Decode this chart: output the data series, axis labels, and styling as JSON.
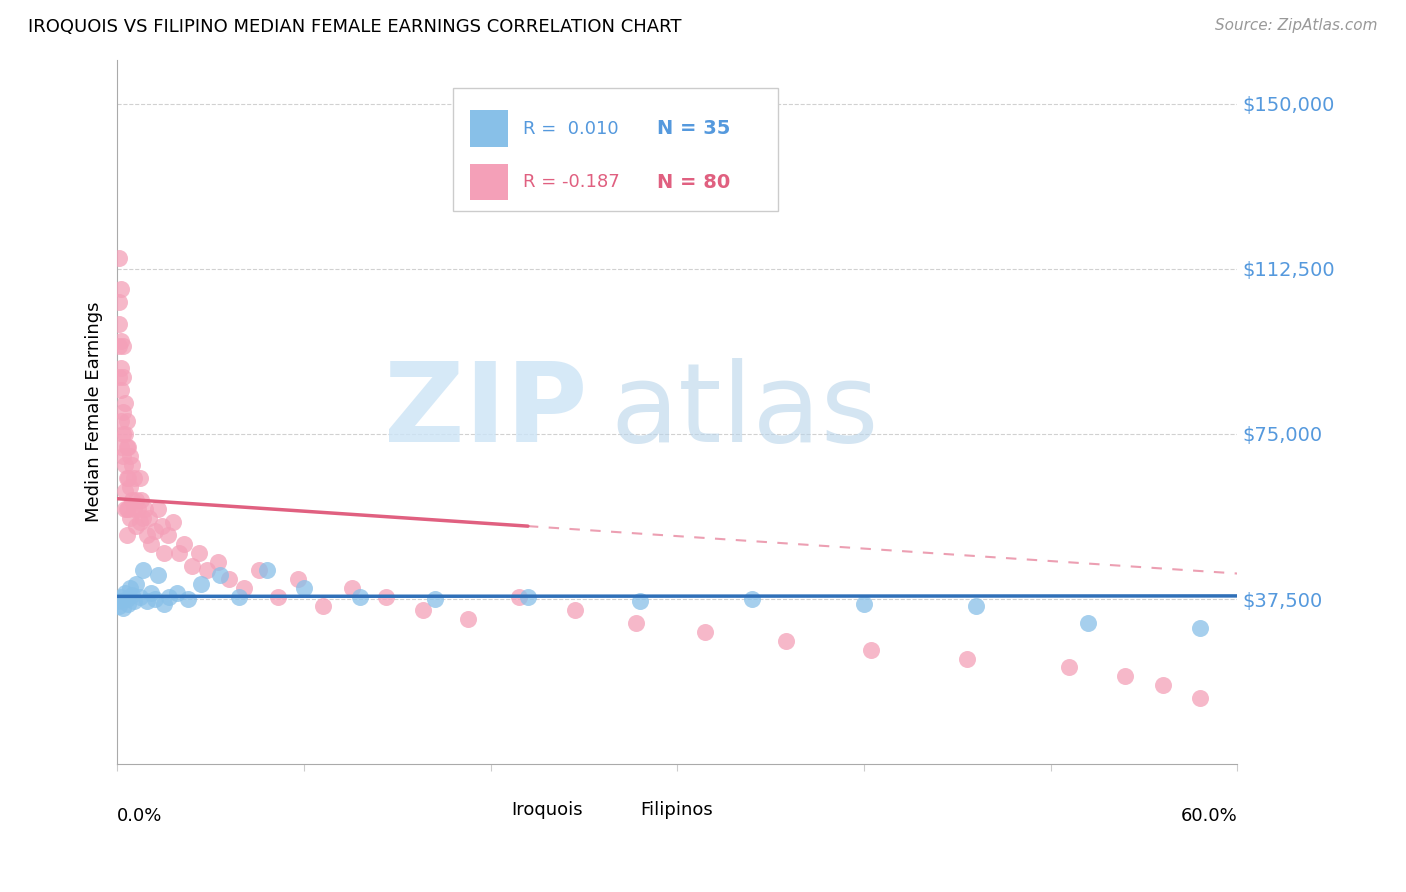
{
  "title": "IROQUOIS VS FILIPINO MEDIAN FEMALE EARNINGS CORRELATION CHART",
  "source": "Source: ZipAtlas.com",
  "ylabel": "Median Female Earnings",
  "ytick_labels": [
    "$37,500",
    "$75,000",
    "$112,500",
    "$150,000"
  ],
  "ytick_values": [
    37500,
    75000,
    112500,
    150000
  ],
  "ymin": 0,
  "ymax": 160000,
  "xmin": 0.0,
  "xmax": 0.6,
  "legend_iroquois_R": "R =  0.010",
  "legend_iroquois_N": "N = 35",
  "legend_filipino_R": "R = -0.187",
  "legend_filipino_N": "N = 80",
  "iroquois_color": "#88c0e8",
  "filipino_color": "#f4a0b8",
  "trendline_iroquois_color": "#3070b8",
  "trendline_filipino_color": "#e06080",
  "ytick_color": "#5599dd",
  "background_color": "#ffffff",
  "iroquois_x": [
    0.001,
    0.001,
    0.002,
    0.003,
    0.004,
    0.005,
    0.006,
    0.007,
    0.008,
    0.009,
    0.01,
    0.012,
    0.014,
    0.016,
    0.018,
    0.02,
    0.022,
    0.025,
    0.028,
    0.032,
    0.038,
    0.045,
    0.055,
    0.065,
    0.08,
    0.1,
    0.13,
    0.17,
    0.22,
    0.28,
    0.34,
    0.4,
    0.46,
    0.52,
    0.58
  ],
  "iroquois_y": [
    37000,
    36000,
    38000,
    35500,
    39000,
    37500,
    36500,
    40000,
    38500,
    37000,
    41000,
    38000,
    44000,
    37000,
    39000,
    37500,
    43000,
    36500,
    38000,
    39000,
    37500,
    41000,
    43000,
    38000,
    44000,
    40000,
    38000,
    37500,
    38000,
    37000,
    37500,
    36500,
    36000,
    32000,
    31000
  ],
  "filipino_x": [
    0.001,
    0.001,
    0.001,
    0.001,
    0.001,
    0.002,
    0.002,
    0.002,
    0.002,
    0.002,
    0.002,
    0.003,
    0.003,
    0.003,
    0.003,
    0.003,
    0.004,
    0.004,
    0.004,
    0.004,
    0.004,
    0.005,
    0.005,
    0.005,
    0.005,
    0.005,
    0.006,
    0.006,
    0.006,
    0.007,
    0.007,
    0.007,
    0.008,
    0.008,
    0.009,
    0.009,
    0.01,
    0.01,
    0.011,
    0.012,
    0.012,
    0.013,
    0.014,
    0.015,
    0.016,
    0.017,
    0.018,
    0.02,
    0.022,
    0.024,
    0.025,
    0.027,
    0.03,
    0.033,
    0.036,
    0.04,
    0.044,
    0.048,
    0.054,
    0.06,
    0.068,
    0.076,
    0.086,
    0.097,
    0.11,
    0.126,
    0.144,
    0.164,
    0.188,
    0.215,
    0.245,
    0.278,
    0.315,
    0.358,
    0.404,
    0.455,
    0.51,
    0.54,
    0.56,
    0.58
  ],
  "filipino_y": [
    115000,
    105000,
    100000,
    95000,
    88000,
    108000,
    96000,
    90000,
    85000,
    78000,
    72000,
    95000,
    88000,
    80000,
    75000,
    70000,
    82000,
    75000,
    68000,
    62000,
    58000,
    78000,
    72000,
    65000,
    58000,
    52000,
    72000,
    65000,
    58000,
    70000,
    63000,
    56000,
    68000,
    60000,
    65000,
    58000,
    60000,
    54000,
    58000,
    65000,
    55000,
    60000,
    56000,
    58000,
    52000,
    56000,
    50000,
    53000,
    58000,
    54000,
    48000,
    52000,
    55000,
    48000,
    50000,
    45000,
    48000,
    44000,
    46000,
    42000,
    40000,
    44000,
    38000,
    42000,
    36000,
    40000,
    38000,
    35000,
    33000,
    38000,
    35000,
    32000,
    30000,
    28000,
    26000,
    24000,
    22000,
    20000,
    18000,
    15000
  ]
}
